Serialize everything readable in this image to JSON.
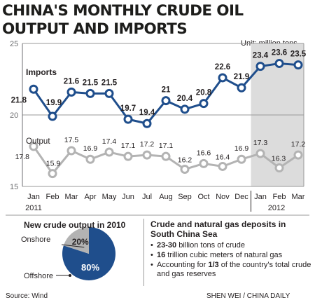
{
  "title_line1": "CHINA'S MONTHLY CRUDE OIL",
  "title_line2": "OUTPUT AND IMPORTS",
  "unit_label": "Unit: million tons",
  "chart_data": [
    {
      "type": "line",
      "x": [
        "Jan",
        "Feb",
        "Mar",
        "Apr",
        "May",
        "Jun",
        "Jul",
        "Aug",
        "Sep",
        "Oct",
        "Nov",
        "Dec",
        "Jan",
        "Feb",
        "Mar"
      ],
      "year_labels": [
        "2011",
        "2012"
      ],
      "series": [
        {
          "name": "Imports",
          "color": "#1f4e8c",
          "values": [
            21.8,
            19.9,
            21.6,
            21.5,
            21.5,
            19.7,
            19.4,
            21,
            20.4,
            20.8,
            22.6,
            21.9,
            23.4,
            23.6,
            23.5
          ],
          "labels": [
            "21.8",
            "19.9",
            "21.6",
            "21.5",
            "21.5",
            "19.7",
            "19.4",
            "21",
            "20.4",
            "20.8",
            "22.6",
            "21.9",
            "23.4",
            "23.6",
            "23.5"
          ]
        },
        {
          "name": "Output",
          "color": "#b3b3b3",
          "values": [
            17.8,
            15.9,
            17.5,
            16.9,
            17.4,
            17.1,
            17.2,
            17.1,
            16.2,
            16.6,
            16.4,
            16.9,
            17.3,
            16.3,
            17.2
          ],
          "labels": [
            "17.8",
            "15.9",
            "17.5",
            "16.9",
            "17.4",
            "17.1",
            "17.2",
            "17.1",
            "16.2",
            "16.6",
            "16.4",
            "16.9",
            "17.3",
            "16.3",
            "17.2"
          ]
        }
      ],
      "ylim": [
        15,
        25
      ],
      "y_ticks": [
        "15",
        "20",
        "25"
      ],
      "grid": "horizontal",
      "highlight_background": "#dcdcdc"
    },
    {
      "type": "pie",
      "title": "New crude output in 2010",
      "categories": [
        "Onshore",
        "Offshore"
      ],
      "values": [
        20,
        80
      ],
      "labels": [
        "20%",
        "80%"
      ],
      "colors": [
        "#b3b3b3",
        "#1f4e8c"
      ]
    }
  ],
  "deposits": {
    "title": "Crude and natural gas deposits in South China Sea",
    "items": [
      {
        "bold": "23-30",
        "text": " billion tons of crude"
      },
      {
        "bold": "16",
        "text": " trillion cubic meters of natural gas"
      },
      {
        "pre": "Accounting for ",
        "bold": "1/3",
        "text": " of the country's total crude and gas reserves"
      }
    ]
  },
  "source": "Source: Wind",
  "credit": "SHEN WEI / CHINA DAILY"
}
